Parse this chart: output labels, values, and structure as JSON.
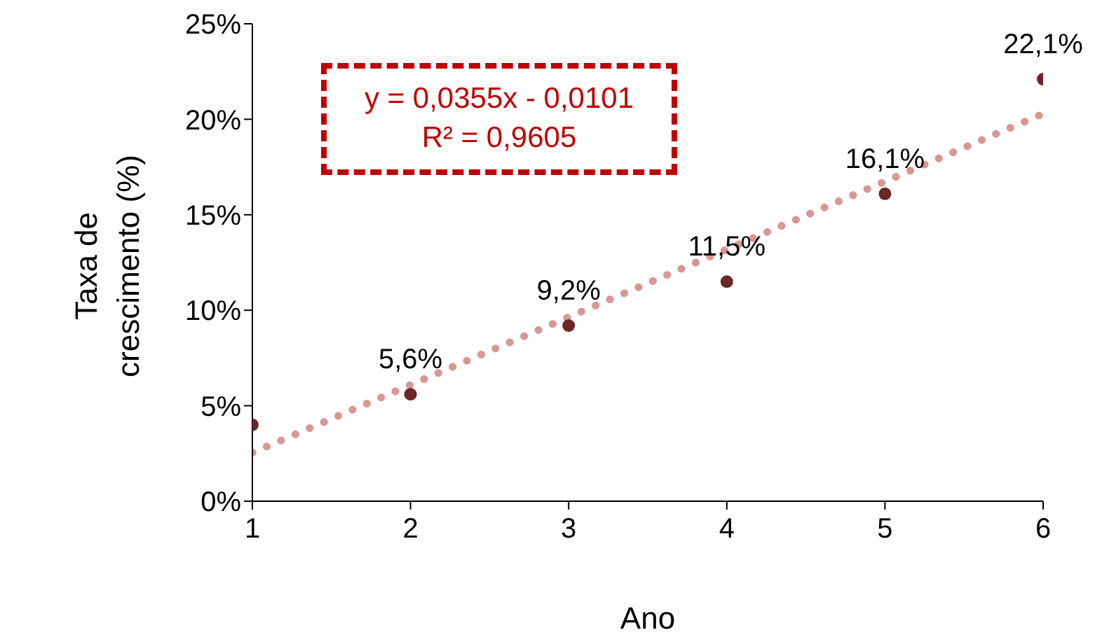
{
  "chart_data": {
    "type": "scatter",
    "xlabel": "Ano",
    "ylabel": "Taxa de crescimento (%)",
    "x": [
      1,
      2,
      3,
      4,
      5,
      6
    ],
    "series": [
      {
        "color": "#6e2626",
        "values": [
          4.0,
          5.6,
          9.2,
          11.5,
          16.1,
          22.1
        ],
        "value_labels": [
          null,
          "5,6%",
          "9,2%",
          "11,5%",
          "16,1%",
          "22,1%"
        ],
        "marker": "circle"
      },
      {
        "type": "line",
        "color": "#d99694",
        "x": [
          1,
          6
        ],
        "values": [
          2.54,
          20.29
        ],
        "line_style": "dotted",
        "marker": "none"
      }
    ],
    "xlim": [
      1,
      6
    ],
    "xticks": [
      1,
      2,
      3,
      4,
      5,
      6
    ],
    "ylim": [
      0,
      25
    ],
    "yticks": [
      {
        "value": 0,
        "label": "0%"
      },
      {
        "value": 5,
        "label": "5%"
      },
      {
        "value": 10,
        "label": "10%"
      },
      {
        "value": 15,
        "label": "15%"
      },
      {
        "value": 20,
        "label": "20%"
      },
      {
        "value": 25,
        "label": "25%"
      }
    ],
    "annotations": [
      "y = 0,0355x - 0,0101",
      "R² = 0,9605"
    ],
    "grid": false,
    "legend": false
  }
}
